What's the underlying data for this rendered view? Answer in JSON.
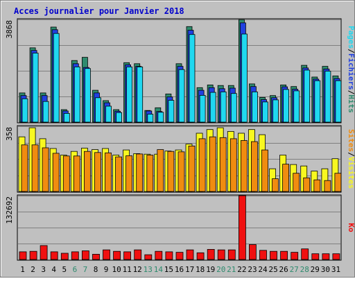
{
  "chart_data": {
    "type": "bar",
    "title": "Acces journalier pour Janvier 2018",
    "categories": [
      "1",
      "2",
      "3",
      "4",
      "5",
      "6",
      "7",
      "8",
      "9",
      "10",
      "11",
      "12",
      "13",
      "14",
      "15",
      "16",
      "17",
      "18",
      "19",
      "20",
      "21",
      "22",
      "23",
      "24",
      "25",
      "26",
      "27",
      "28",
      "29",
      "30",
      "31"
    ],
    "weekend_days": [
      "6",
      "7",
      "13",
      "14",
      "20",
      "21",
      "27",
      "28"
    ],
    "panels": [
      {
        "id": "pages_fichiers_hits",
        "ymax_label": "3868",
        "ymax": 3868,
        "legend": [
          "Pages",
          "/",
          "Fichiers",
          "/",
          "Hits"
        ],
        "series": [
          {
            "name": "Hits",
            "color": "#2E8B6E",
            "values": [
              1100,
              2800,
              1100,
              3580,
              470,
              2320,
              2440,
              1200,
              810,
              470,
              2240,
              2200,
              440,
              540,
              1060,
              2200,
              3600,
              1300,
              1400,
              1380,
              1380,
              3860,
              1440,
              930,
              1000,
              1400,
              1340,
              2140,
              1700,
              2100,
              1740
            ]
          },
          {
            "name": "Fichiers",
            "color": "#2040E0",
            "values": [
              1000,
              2700,
              1000,
              3480,
              420,
              2200,
              2060,
              1100,
              730,
              410,
              2160,
              2100,
              420,
              400,
              950,
              2100,
              3460,
              1200,
              1300,
              1260,
              1280,
              3740,
              1340,
              850,
              920,
              1330,
              1240,
              2040,
              1620,
              2000,
              1640
            ]
          },
          {
            "name": "Pages",
            "color": "#20D8F0",
            "values": [
              880,
              2600,
              780,
              3340,
              330,
              2080,
              2020,
              920,
              600,
              360,
              2080,
              2080,
              300,
              370,
              820,
              1980,
              3300,
              1010,
              1120,
              1140,
              1080,
              3320,
              1140,
              760,
              840,
              1230,
              1180,
              1960,
              1560,
              1920,
              1560
            ]
          }
        ]
      },
      {
        "id": "visites_sites",
        "ymax_label": "358",
        "ymax": 358,
        "legend": [
          "Sites",
          "/",
          "Visites"
        ],
        "series": [
          {
            "name": "Visites",
            "color": "#F8F820",
            "values": [
              300,
              350,
              290,
              236,
              200,
              220,
              238,
              230,
              236,
              200,
              228,
              208,
              205,
              205,
              222,
              228,
              260,
              320,
              340,
              350,
              330,
              320,
              340,
              312,
              125,
              200,
              148,
              140,
              112,
              125,
              180
            ]
          },
          {
            "name": "Sites",
            "color": "#F08C10",
            "values": [
              256,
              256,
              240,
              210,
              195,
              195,
              220,
              214,
              212,
              190,
              196,
              206,
              200,
              230,
              220,
              218,
              250,
              290,
              300,
              296,
              290,
              280,
              274,
              228,
              70,
              150,
              100,
              75,
              64,
              60,
              100
            ]
          }
        ]
      },
      {
        "id": "ko",
        "ymax_label": "132692",
        "ymax": 132692,
        "legend": [
          "Ko"
        ],
        "series": [
          {
            "name": "Ko",
            "color": "#F01010",
            "values": [
              16000,
              17000,
              29000,
              16000,
              13000,
              16000,
              18000,
              11000,
              20000,
              17000,
              16000,
              20000,
              10000,
              17000,
              16000,
              15000,
              20000,
              14000,
              21000,
              20000,
              20000,
              132692,
              31000,
              19000,
              17000,
              17000,
              15000,
              22000,
              12000,
              12000,
              12000
            ]
          }
        ]
      }
    ]
  }
}
